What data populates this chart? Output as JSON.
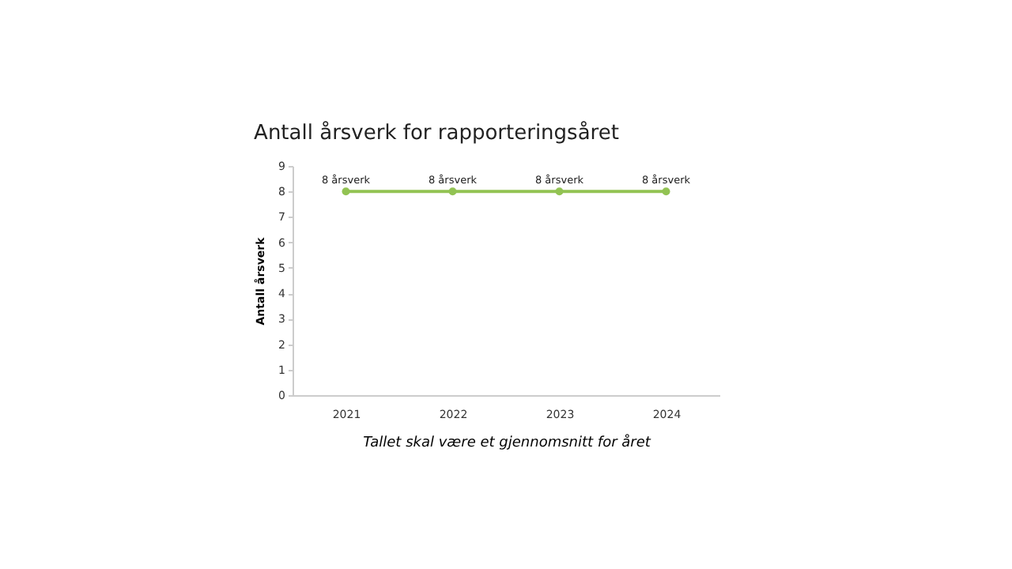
{
  "chart_data": {
    "type": "line",
    "title": "Antall årsverk for rapporteringsåret",
    "xlabel": "Tallet skal være et gjennomsnitt for året",
    "ylabel": "Antall årsverk",
    "categories": [
      "2021",
      "2022",
      "2023",
      "2024"
    ],
    "series": [
      {
        "color": "#92c353",
        "values": [
          8,
          8,
          8,
          8
        ],
        "value_labels": [
          "8 årsverk",
          "8 årsverk",
          "8 årsverk",
          "8 årsverk"
        ]
      }
    ],
    "ylim": [
      0,
      9
    ],
    "yticks": [
      0,
      1,
      2,
      3,
      4,
      5,
      6,
      7,
      8,
      9
    ],
    "grid": false,
    "marker": "circle",
    "line_style": "solid"
  }
}
